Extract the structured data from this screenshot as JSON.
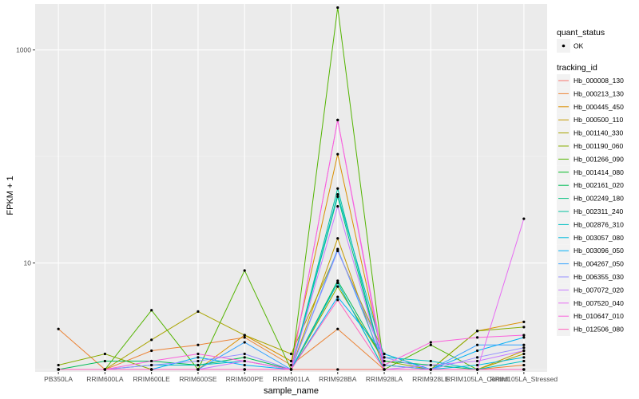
{
  "chart_data": {
    "type": "line",
    "title": "",
    "xlabel": "sample_name",
    "ylabel": "FPKM + 1",
    "y_scale": "log10",
    "ylim": [
      0.95,
      2700
    ],
    "y_ticks": [
      10,
      1000
    ],
    "y_tick_labels": [
      "10",
      "1000"
    ],
    "y_minor_ticks": [
      1,
      100
    ],
    "grid": true,
    "legend_position": "right",
    "categories": [
      "PB350LA",
      "RRIM600LA",
      "RRIM600LE",
      "RRIM600SE",
      "RRIM600PE",
      "RRIM901LA",
      "RRIM928BA",
      "RRIM928LA",
      "RRIM928LE",
      "RRIM105LA_Control",
      "RRIM105LA_Stressed"
    ],
    "quant_status": {
      "title": "quant_status",
      "entries": [
        "OK"
      ]
    },
    "legend_title": "tracking_id",
    "series": [
      {
        "name": "Hb_000008_130",
        "color": "#F8766D",
        "values": [
          1.0,
          1.0,
          1.0,
          1.0,
          1.0,
          1.0,
          1.0,
          1.0,
          1.0,
          1.0,
          1.0
        ]
      },
      {
        "name": "Hb_000213_130",
        "color": "#EB8335",
        "values": [
          2.4,
          1.0,
          1.5,
          1.7,
          2.0,
          1.1,
          2.4,
          1.0,
          1.0,
          1.0,
          1.1
        ]
      },
      {
        "name": "Hb_000445_450",
        "color": "#DA8F00",
        "values": [
          1.0,
          1.0,
          1.0,
          1.0,
          2.1,
          1.2,
          105.0,
          1.1,
          1.0,
          2.3,
          2.8
        ]
      },
      {
        "name": "Hb_000500_110",
        "color": "#C49A00",
        "values": [
          1.0,
          1.0,
          1.0,
          1.0,
          1.0,
          1.0,
          17.0,
          1.0,
          1.0,
          1.0,
          1.5
        ]
      },
      {
        "name": "Hb_001140_330",
        "color": "#A9A400",
        "values": [
          1.0,
          1.0,
          1.9,
          3.5,
          2.1,
          1.4,
          13.0,
          1.4,
          1.0,
          1.0,
          1.4
        ]
      },
      {
        "name": "Hb_001190_060",
        "color": "#87AC00",
        "values": [
          1.1,
          1.4,
          1.0,
          1.0,
          1.0,
          1.0,
          6.0,
          1.2,
          1.0,
          2.3,
          2.5
        ]
      },
      {
        "name": "Hb_001266_090",
        "color": "#53B400",
        "values": [
          1.0,
          1.0,
          3.6,
          1.0,
          8.5,
          1.0,
          2500.0,
          1.0,
          1.7,
          1.0,
          1.0
        ]
      },
      {
        "name": "Hb_001414_080",
        "color": "#00B823",
        "values": [
          1.0,
          1.0,
          1.0,
          1.0,
          1.0,
          1.0,
          6.5,
          1.0,
          1.0,
          1.0,
          1.0
        ]
      },
      {
        "name": "Hb_002161_020",
        "color": "#00BC56",
        "values": [
          1.0,
          1.2,
          1.2,
          1.1,
          1.3,
          1.0,
          6.8,
          1.2,
          1.1,
          1.0,
          1.0
        ]
      },
      {
        "name": "Hb_002249_180",
        "color": "#00BF7D",
        "values": [
          1.0,
          1.0,
          1.0,
          1.0,
          1.0,
          1.0,
          42.0,
          1.0,
          1.0,
          1.0,
          1.0
        ]
      },
      {
        "name": "Hb_002311_240",
        "color": "#00C09F",
        "values": [
          1.0,
          1.0,
          1.0,
          1.0,
          1.0,
          1.0,
          50.0,
          1.0,
          1.0,
          1.0,
          1.0
        ]
      },
      {
        "name": "Hb_002876_310",
        "color": "#00BFC0",
        "values": [
          1.0,
          1.0,
          1.1,
          1.1,
          1.2,
          1.0,
          44.0,
          1.3,
          1.2,
          1.0,
          1.2
        ]
      },
      {
        "name": "Hb_003057_080",
        "color": "#00BADD",
        "values": [
          1.0,
          1.0,
          1.0,
          1.0,
          1.0,
          1.0,
          6.5,
          1.0,
          1.0,
          1.1,
          1.3
        ]
      },
      {
        "name": "Hb_003096_050",
        "color": "#00B0F6",
        "values": [
          1.0,
          1.0,
          1.0,
          1.3,
          1.1,
          1.0,
          4.8,
          1.4,
          1.0,
          1.5,
          2.0
        ]
      },
      {
        "name": "Hb_004267_050",
        "color": "#35A2FF",
        "values": [
          1.0,
          1.0,
          1.0,
          1.0,
          1.8,
          1.0,
          13.5,
          1.1,
          1.0,
          1.7,
          1.7
        ]
      },
      {
        "name": "Hb_006355_030",
        "color": "#9590FF",
        "values": [
          1.0,
          1.0,
          1.1,
          1.2,
          1.4,
          1.0,
          13.0,
          1.3,
          1.0,
          1.3,
          1.6
        ]
      },
      {
        "name": "Hb_007072_020",
        "color": "#C77CFF",
        "values": [
          1.0,
          1.0,
          1.0,
          1.0,
          1.2,
          1.0,
          34.0,
          1.0,
          1.1,
          1.2,
          1.5
        ]
      },
      {
        "name": "Hb_007520_040",
        "color": "#E76BF3",
        "values": [
          1.0,
          1.0,
          1.0,
          1.0,
          1.0,
          1.0,
          220.0,
          1.0,
          1.0,
          1.0,
          26.0
        ]
      },
      {
        "name": "Hb_010647_010",
        "color": "#FA62DB",
        "values": [
          1.0,
          1.0,
          1.2,
          1.4,
          1.2,
          1.0,
          220.0,
          1.1,
          1.8,
          2.0,
          2.1
        ]
      },
      {
        "name": "Hb_012506_080",
        "color": "#FF62BC",
        "values": [
          1.0,
          1.0,
          1.0,
          1.0,
          1.0,
          1.0,
          4.5,
          1.0,
          1.0,
          1.0,
          1.0
        ]
      }
    ]
  }
}
